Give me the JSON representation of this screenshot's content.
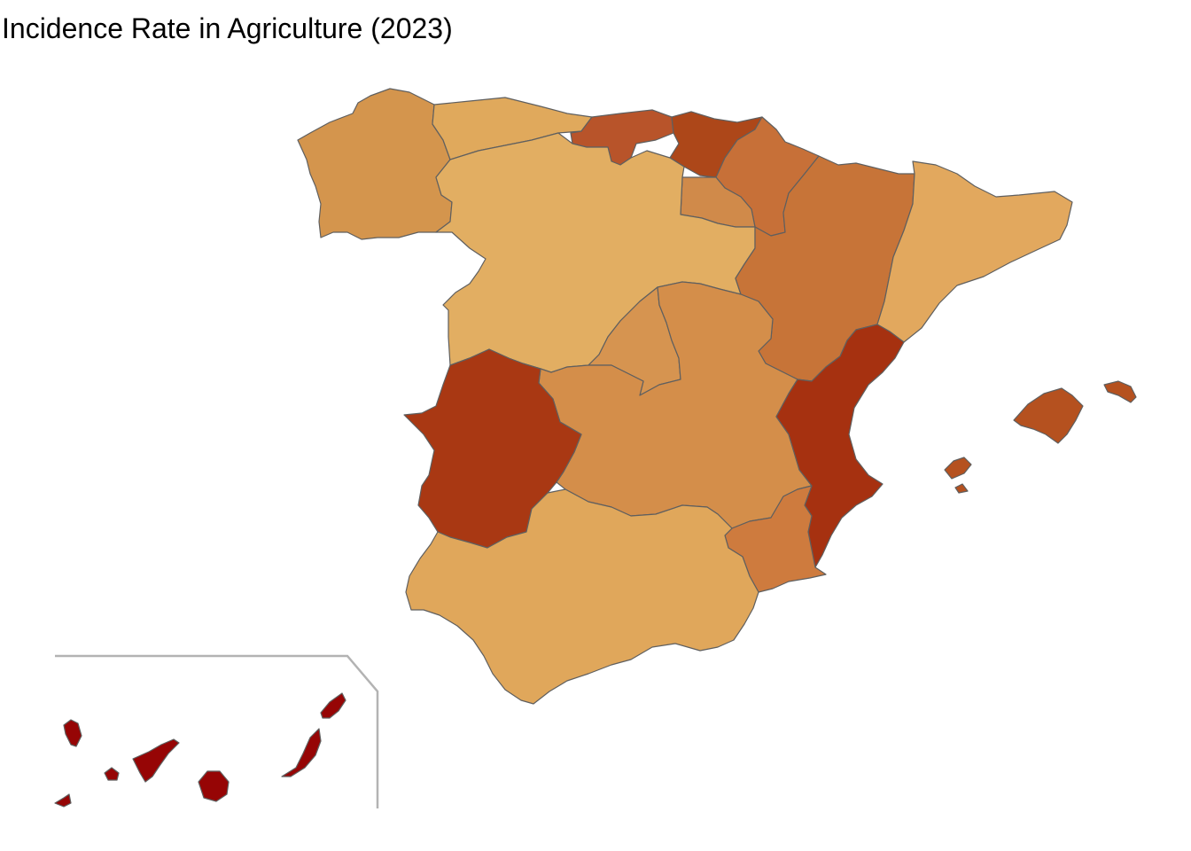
{
  "title": "Incidence Rate in Agriculture (2023)",
  "colors": {
    "border": "#5f5f5f",
    "inset_frame": "#b3b3b3"
  },
  "regions": [
    {
      "id": "galicia",
      "fill": "#D4954D"
    },
    {
      "id": "asturias",
      "fill": "#E0A95C"
    },
    {
      "id": "cantabria",
      "fill": "#B8542A"
    },
    {
      "id": "pais-vasco",
      "fill": "#AD4719"
    },
    {
      "id": "navarra",
      "fill": "#C77038"
    },
    {
      "id": "la-rioja",
      "fill": "#D08A4A"
    },
    {
      "id": "castilla-y-leon",
      "fill": "#E2AE62"
    },
    {
      "id": "aragon",
      "fill": "#C77438"
    },
    {
      "id": "cataluna",
      "fill": "#E2A85E"
    },
    {
      "id": "madrid",
      "fill": "#D69450"
    },
    {
      "id": "castilla-la-mancha",
      "fill": "#D48E4A"
    },
    {
      "id": "extremadura",
      "fill": "#A93813"
    },
    {
      "id": "comunidad-valenciana",
      "fill": "#A63110"
    },
    {
      "id": "murcia",
      "fill": "#CE7B3E"
    },
    {
      "id": "andalucia",
      "fill": "#E0A75B"
    },
    {
      "id": "baleares",
      "fill": "#B5511F"
    },
    {
      "id": "canarias",
      "fill": "#960505"
    }
  ]
}
